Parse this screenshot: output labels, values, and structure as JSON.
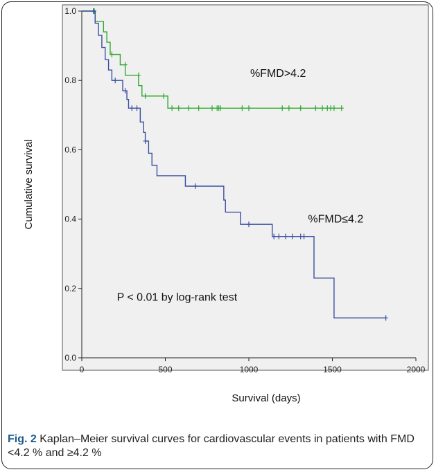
{
  "chart_data": {
    "type": "line",
    "subtype": "kaplan-meier step",
    "xlabel": "Survival (days)",
    "ylabel": "Cumulative survival",
    "xlim": [
      0,
      2000
    ],
    "ylim": [
      0.0,
      1.0
    ],
    "xticks": [
      0,
      500,
      1000,
      1500,
      2000
    ],
    "yticks": [
      0.0,
      0.2,
      0.4,
      0.6,
      0.8,
      1.0
    ],
    "grid": false,
    "plot_background": "#f0f0f0",
    "series": [
      {
        "color": "#2ea82e",
        "steps": [
          [
            0,
            1.0
          ],
          [
            80,
            0.97
          ],
          [
            130,
            0.94
          ],
          [
            150,
            0.91
          ],
          [
            170,
            0.875
          ],
          [
            230,
            0.845
          ],
          [
            260,
            0.815
          ],
          [
            340,
            0.785
          ],
          [
            360,
            0.755
          ],
          [
            515,
            0.72
          ],
          [
            1550,
            0.72
          ]
        ],
        "censors": [
          [
            75,
            1.0
          ],
          [
            180,
            0.875
          ],
          [
            260,
            0.845
          ],
          [
            340,
            0.815
          ],
          [
            380,
            0.755
          ],
          [
            490,
            0.755
          ],
          [
            540,
            0.72
          ],
          [
            580,
            0.72
          ],
          [
            640,
            0.72
          ],
          [
            700,
            0.72
          ],
          [
            780,
            0.72
          ],
          [
            810,
            0.72
          ],
          [
            820,
            0.72
          ],
          [
            830,
            0.72
          ],
          [
            960,
            0.72
          ],
          [
            1000,
            0.72
          ],
          [
            1200,
            0.72
          ],
          [
            1240,
            0.72
          ],
          [
            1310,
            0.72
          ],
          [
            1400,
            0.72
          ],
          [
            1440,
            0.72
          ],
          [
            1470,
            0.72
          ],
          [
            1490,
            0.72
          ],
          [
            1510,
            0.72
          ],
          [
            1555,
            0.72
          ]
        ]
      },
      {
        "color": "#3a4fa0",
        "steps": [
          [
            0,
            1.0
          ],
          [
            80,
            0.965
          ],
          [
            100,
            0.93
          ],
          [
            120,
            0.895
          ],
          [
            140,
            0.86
          ],
          [
            160,
            0.83
          ],
          [
            180,
            0.8
          ],
          [
            245,
            0.77
          ],
          [
            270,
            0.745
          ],
          [
            280,
            0.72
          ],
          [
            350,
            0.68
          ],
          [
            370,
            0.65
          ],
          [
            380,
            0.625
          ],
          [
            400,
            0.59
          ],
          [
            420,
            0.555
          ],
          [
            450,
            0.525
          ],
          [
            620,
            0.495
          ],
          [
            850,
            0.455
          ],
          [
            860,
            0.42
          ],
          [
            950,
            0.385
          ],
          [
            1140,
            0.35
          ],
          [
            1390,
            0.23
          ],
          [
            1510,
            0.115
          ],
          [
            1820,
            0.115
          ]
        ],
        "censors": [
          [
            70,
            1.0
          ],
          [
            200,
            0.8
          ],
          [
            260,
            0.77
          ],
          [
            300,
            0.72
          ],
          [
            330,
            0.72
          ],
          [
            380,
            0.625
          ],
          [
            680,
            0.495
          ],
          [
            1000,
            0.385
          ],
          [
            1150,
            0.35
          ],
          [
            1180,
            0.35
          ],
          [
            1220,
            0.35
          ],
          [
            1260,
            0.35
          ],
          [
            1310,
            0.35
          ],
          [
            1330,
            0.35
          ],
          [
            1820,
            0.115
          ]
        ]
      }
    ],
    "annotations": [
      {
        "text": "%FMD>4.2",
        "x": 1175,
        "y": 0.81
      },
      {
        "text": "%FMD≤4.2",
        "x": 1520,
        "y": 0.39
      },
      {
        "text": "P < 0.01 by log-rank test",
        "x": 570,
        "y": 0.165
      }
    ]
  },
  "caption": {
    "label": "Fig. 2",
    "text": " Kaplan–Meier survival curves for cardiovascular events in patients with FMD <4.2 % and ≥4.2 %"
  }
}
